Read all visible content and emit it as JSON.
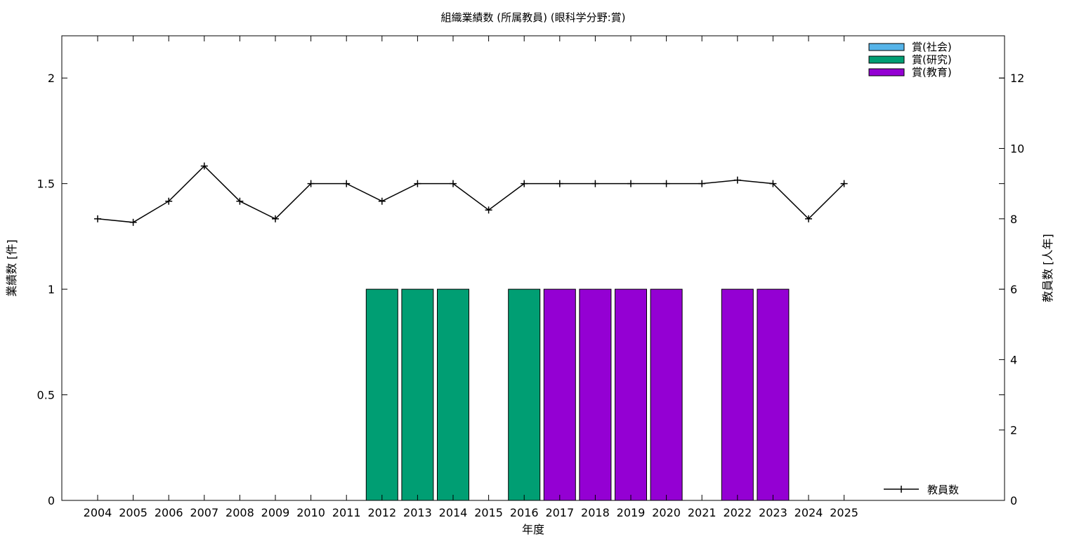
{
  "chart_data": {
    "type": "bar",
    "title": "組織業績数 (所属教員) (眼科学分野:賞)",
    "xlabel": "年度",
    "ylabel": "業績数 [件]",
    "y2label": "教員数 [人年]",
    "categories": [
      "2004",
      "2005",
      "2006",
      "2007",
      "2008",
      "2009",
      "2010",
      "2011",
      "2012",
      "2013",
      "2014",
      "2015",
      "2016",
      "2017",
      "2018",
      "2019",
      "2020",
      "2021",
      "2022",
      "2023",
      "2024",
      "2025"
    ],
    "ylim": [
      0,
      2.2
    ],
    "y2lim": [
      0,
      13.2
    ],
    "yticks": [
      "0",
      "0.5",
      "1",
      "1.5",
      "2"
    ],
    "yticks_values": [
      0,
      0.5,
      1,
      1.5,
      2
    ],
    "y2ticks": [
      "0",
      "2",
      "4",
      "6",
      "8",
      "10",
      "12"
    ],
    "y2ticks_values": [
      0,
      2,
      4,
      6,
      8,
      10,
      12
    ],
    "grid": false,
    "legend_position": "top-right",
    "series": [
      {
        "name": "賞(社会)",
        "color": "#56b4e9",
        "values": [
          0,
          0,
          0,
          0,
          0,
          0,
          0,
          0,
          0,
          0,
          0,
          0,
          0,
          0,
          0,
          0,
          0,
          0,
          0,
          0,
          0,
          0
        ]
      },
      {
        "name": "賞(研究)",
        "color": "#009e73",
        "values": [
          0,
          0,
          0,
          0,
          0,
          0,
          0,
          0,
          1,
          1,
          1,
          0,
          1,
          0,
          0,
          0,
          0,
          0,
          0,
          0,
          0,
          0
        ]
      },
      {
        "name": "賞(教育)",
        "color": "#9400d3",
        "values": [
          0,
          0,
          0,
          0,
          0,
          0,
          0,
          0,
          0,
          0,
          0,
          0,
          0,
          1,
          1,
          1,
          1,
          0,
          1,
          1,
          0,
          0
        ]
      }
    ],
    "line_series": {
      "name": "教員数",
      "color": "#000000",
      "axis": "y2",
      "values": [
        8.0,
        7.9,
        8.5,
        9.5,
        8.5,
        8.0,
        9.0,
        9.0,
        8.5,
        9.0,
        9.0,
        8.25,
        9.0,
        9.0,
        9.0,
        9.0,
        9.0,
        9.0,
        9.1,
        9.0,
        8.0,
        9.0
      ]
    }
  }
}
